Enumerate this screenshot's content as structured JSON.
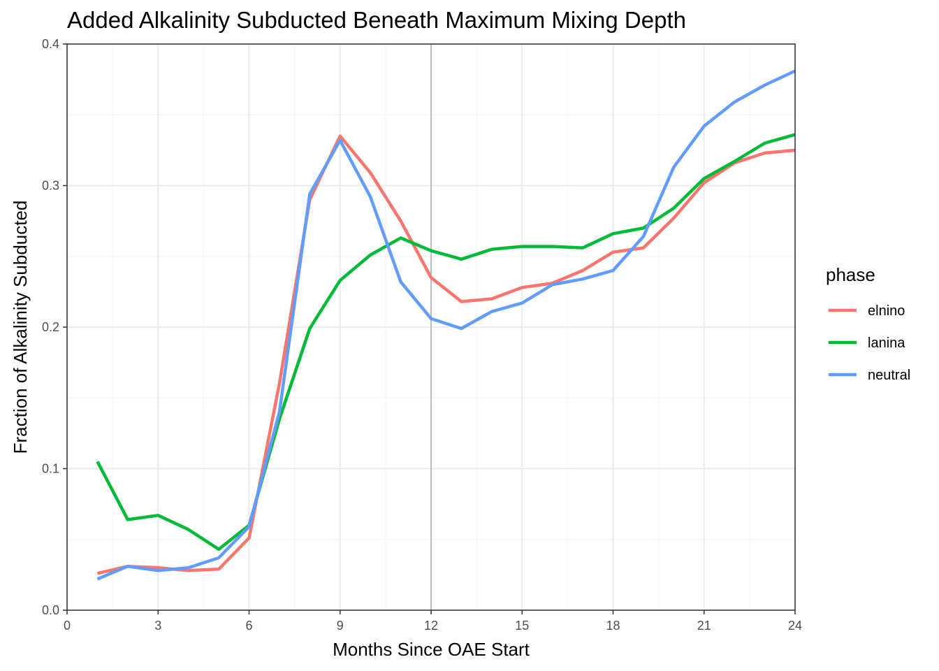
{
  "chart_data": {
    "type": "line",
    "title": "Added Alkalinity Subducted Beneath Maximum Mixing Depth",
    "xlabel": "Months Since OAE Start",
    "ylabel": "Fraction of Alkalinity Subducted",
    "xlim": [
      0,
      24
    ],
    "ylim": [
      0,
      0.4
    ],
    "xticks": [
      0,
      3,
      6,
      9,
      12,
      15,
      18,
      21,
      24
    ],
    "yticks": [
      0.0,
      0.1,
      0.2,
      0.3,
      0.4
    ],
    "xtick_labels": [
      "0",
      "3",
      "6",
      "9",
      "12",
      "15",
      "18",
      "21",
      "24"
    ],
    "ytick_labels": [
      "0.0",
      "0.1",
      "0.2",
      "0.3",
      "0.4"
    ],
    "vline_x": 12,
    "grid": true,
    "legend": {
      "title": "phase",
      "placement": "right"
    },
    "x": [
      1,
      2,
      3,
      4,
      5,
      6,
      7,
      8,
      9,
      10,
      11,
      12,
      13,
      14,
      15,
      16,
      17,
      18,
      19,
      20,
      21,
      22,
      23,
      24
    ],
    "series": [
      {
        "name": "elnino",
        "color": "#F8766D",
        "values": [
          0.026,
          0.031,
          0.03,
          0.028,
          0.029,
          0.051,
          0.16,
          0.29,
          0.335,
          0.309,
          0.275,
          0.235,
          0.218,
          0.22,
          0.228,
          0.231,
          0.24,
          0.253,
          0.256,
          0.277,
          0.302,
          0.316,
          0.323,
          0.325
        ]
      },
      {
        "name": "lanina",
        "color": "#00BA38",
        "values": [
          0.105,
          0.064,
          0.067,
          0.057,
          0.043,
          0.06,
          0.135,
          0.199,
          0.233,
          0.251,
          0.263,
          0.254,
          0.248,
          0.255,
          0.257,
          0.257,
          0.256,
          0.266,
          0.27,
          0.284,
          0.305,
          0.317,
          0.33,
          0.336
        ]
      },
      {
        "name": "neutral",
        "color": "#619CFF",
        "values": [
          0.022,
          0.031,
          0.028,
          0.03,
          0.037,
          0.059,
          0.14,
          0.294,
          0.332,
          0.292,
          0.232,
          0.206,
          0.199,
          0.211,
          0.217,
          0.23,
          0.234,
          0.24,
          0.264,
          0.313,
          0.342,
          0.359,
          0.371,
          0.381
        ]
      }
    ]
  }
}
